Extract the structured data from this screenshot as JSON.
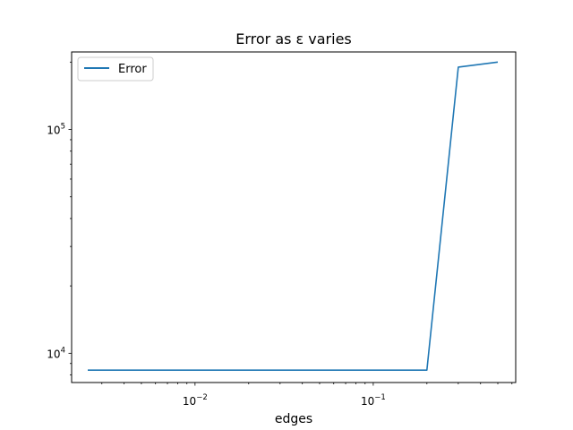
{
  "chart_data": {
    "type": "line",
    "title": "Error as ε varies",
    "xlabel": "edges",
    "ylabel": "",
    "xscale": "log",
    "yscale": "log",
    "xlim": [
      0.00203,
      0.63
    ],
    "ylim": [
      7400,
      222000
    ],
    "grid": false,
    "legend": {
      "position": "top-left",
      "entries": [
        "Error"
      ]
    },
    "series": [
      {
        "name": "Error",
        "color": "#1f77b4",
        "x": [
          0.0025,
          0.2,
          0.3,
          0.5
        ],
        "y": [
          8400,
          8400,
          190000,
          200000
        ]
      }
    ],
    "x_major_ticks": [
      {
        "value": 0.01,
        "base": "10",
        "exp": "−2"
      },
      {
        "value": 0.1,
        "base": "10",
        "exp": "−1"
      }
    ],
    "y_major_ticks": [
      {
        "value": 10000,
        "base": "10",
        "exp": "4"
      },
      {
        "value": 100000,
        "base": "10",
        "exp": "5"
      }
    ]
  }
}
